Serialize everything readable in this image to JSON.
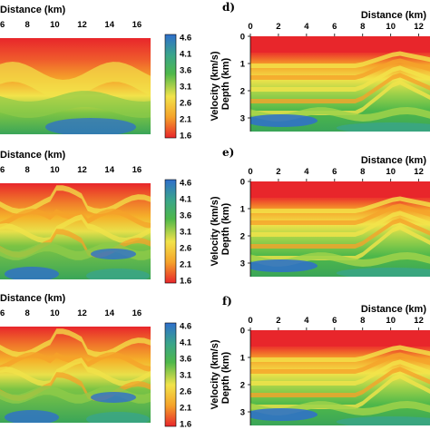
{
  "chart_data": [
    {
      "id": "a",
      "type": "heatmap",
      "panel_label": "",
      "xlabel": "Distance (km)",
      "x_ticks": [
        6,
        8,
        10,
        12,
        14,
        16
      ],
      "xlim": [
        6,
        17
      ],
      "colorbar": {
        "label": "Velocity (km/s)",
        "ticks": [
          4.6,
          4.1,
          3.6,
          3.1,
          2.6,
          2.1,
          1.6
        ],
        "range": [
          1.6,
          4.6
        ]
      }
    },
    {
      "id": "b",
      "type": "heatmap",
      "panel_label": "",
      "xlabel": "Distance (km)",
      "x_ticks": [
        6,
        8,
        10,
        12,
        14,
        16
      ],
      "xlim": [
        6,
        17
      ],
      "colorbar": {
        "label": "Velocity (km/s)",
        "ticks": [
          4.6,
          4.1,
          3.6,
          3.1,
          2.6,
          2.1,
          1.6
        ],
        "range": [
          1.6,
          4.6
        ]
      }
    },
    {
      "id": "c",
      "type": "heatmap",
      "panel_label": "",
      "xlabel": "Distance (km)",
      "x_ticks": [
        6,
        8,
        10,
        12,
        14,
        16
      ],
      "xlim": [
        6,
        17
      ],
      "colorbar": {
        "label": "Velocity (km/s)",
        "ticks": [
          4.6,
          4.1,
          3.6,
          3.1,
          2.6,
          2.1,
          1.6
        ],
        "range": [
          1.6,
          4.6
        ]
      }
    },
    {
      "id": "d",
      "type": "heatmap",
      "panel_label": "d)",
      "xlabel": "Distance (km)",
      "ylabel": "Depth (km)",
      "x_ticks": [
        0,
        2,
        4,
        6,
        8,
        10,
        12
      ],
      "y_ticks": [
        0,
        1,
        2,
        3
      ],
      "xlim": [
        0,
        12.8
      ],
      "ylim": [
        0,
        3.5
      ]
    },
    {
      "id": "e",
      "type": "heatmap",
      "panel_label": "e)",
      "xlabel": "Distance (km)",
      "ylabel": "Depth (km)",
      "x_ticks": [
        0,
        2,
        4,
        6,
        8,
        10,
        12
      ],
      "y_ticks": [
        0,
        1,
        2,
        3
      ],
      "xlim": [
        0,
        12.8
      ],
      "ylim": [
        0,
        3.5
      ]
    },
    {
      "id": "f",
      "type": "heatmap",
      "panel_label": "f)",
      "xlabel": "Distance (km)",
      "ylabel": "Depth (km)",
      "x_ticks": [
        0,
        2,
        4,
        6,
        8,
        10,
        12
      ],
      "y_ticks": [
        0,
        1,
        2,
        3
      ],
      "xlim": [
        0,
        12.8
      ],
      "ylim": [
        0,
        3.5
      ]
    }
  ],
  "colors": {
    "red": "#e8262b",
    "orange": "#f5a22a",
    "yellow": "#f2e34a",
    "green": "#4fb84a",
    "blue": "#2f6fcc"
  }
}
